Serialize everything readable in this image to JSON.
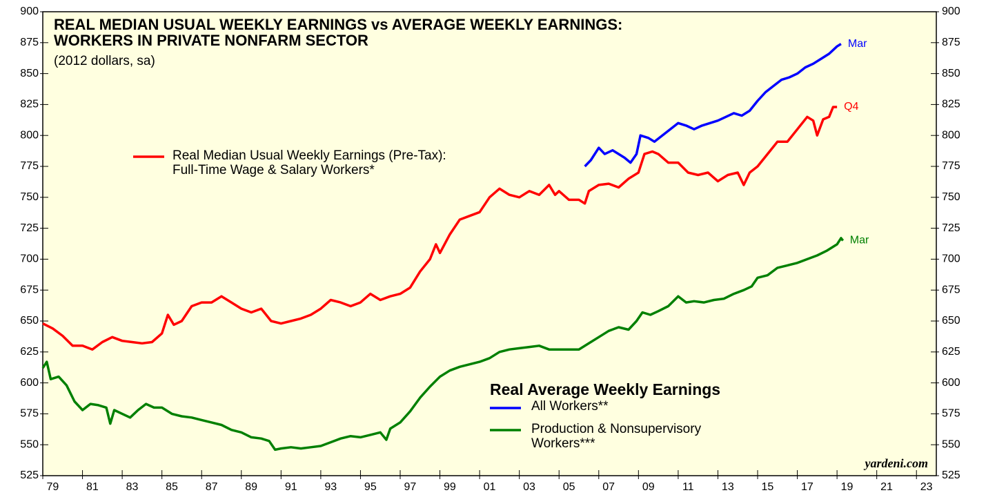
{
  "chart_data": {
    "type": "line",
    "title": "REAL MEDIAN USUAL WEEKLY EARNINGS vs AVERAGE WEEKLY EARNINGS:\nWORKERS IN PRIVATE NONFARM SECTOR",
    "subtitle": "(2012 dollars, sa)",
    "legend_title": "Real Average Weekly Earnings",
    "source": "yardeni.com",
    "xlim": [
      1979,
      2024
    ],
    "xticks": [
      {
        "value": 1979,
        "label": "79"
      },
      {
        "value": 1981,
        "label": "81"
      },
      {
        "value": 1983,
        "label": "83"
      },
      {
        "value": 1985,
        "label": "85"
      },
      {
        "value": 1987,
        "label": "87"
      },
      {
        "value": 1989,
        "label": "89"
      },
      {
        "value": 1991,
        "label": "91"
      },
      {
        "value": 1993,
        "label": "93"
      },
      {
        "value": 1995,
        "label": "95"
      },
      {
        "value": 1997,
        "label": "97"
      },
      {
        "value": 1999,
        "label": "99"
      },
      {
        "value": 2001,
        "label": "01"
      },
      {
        "value": 2003,
        "label": "03"
      },
      {
        "value": 2005,
        "label": "05"
      },
      {
        "value": 2007,
        "label": "07"
      },
      {
        "value": 2009,
        "label": "09"
      },
      {
        "value": 2011,
        "label": "11"
      },
      {
        "value": 2013,
        "label": "13"
      },
      {
        "value": 2015,
        "label": "15"
      },
      {
        "value": 2017,
        "label": "17"
      },
      {
        "value": 2019,
        "label": "19"
      },
      {
        "value": 2021,
        "label": "21"
      },
      {
        "value": 2023,
        "label": "23"
      }
    ],
    "ylim": [
      525,
      900
    ],
    "yticks": [
      525,
      550,
      575,
      600,
      625,
      650,
      675,
      700,
      725,
      750,
      775,
      800,
      825,
      850,
      875,
      900
    ],
    "series": [
      {
        "name": "Real Median Usual Weekly Earnings (Pre-Tax):\nFull-Time Wage & Salary Workers*",
        "color": "#ff0000",
        "end_label": "Q4",
        "x": [
          1979,
          1979.5,
          1980,
          1980.5,
          1981,
          1981.5,
          1982,
          1982.5,
          1983,
          1983.5,
          1984,
          1984.5,
          1985,
          1985.3,
          1985.6,
          1986,
          1986.5,
          1987,
          1987.5,
          1988,
          1988.5,
          1989,
          1989.5,
          1990,
          1990.5,
          1991,
          1991.5,
          1992,
          1992.5,
          1993,
          1993.5,
          1994,
          1994.5,
          1995,
          1995.5,
          1996,
          1996.5,
          1997,
          1997.5,
          1998,
          1998.5,
          1998.8,
          1999,
          1999.5,
          2000,
          2000.5,
          2001,
          2001.5,
          2002,
          2002.5,
          2003,
          2003.5,
          2004,
          2004.5,
          2004.8,
          2005,
          2005.5,
          2006,
          2006.3,
          2006.5,
          2007,
          2007.5,
          2008,
          2008.5,
          2009,
          2009.3,
          2009.7,
          2010,
          2010.5,
          2011,
          2011.5,
          2012,
          2012.5,
          2013,
          2013.5,
          2014,
          2014.3,
          2014.6,
          2015,
          2015.5,
          2016,
          2016.5,
          2017,
          2017.5,
          2017.8,
          2018,
          2018.3,
          2018.6,
          2018.8,
          2019
        ],
        "values": [
          648,
          644,
          638,
          630,
          630,
          627,
          633,
          637,
          634,
          633,
          632,
          633,
          640,
          655,
          647,
          650,
          662,
          665,
          665,
          670,
          665,
          660,
          657,
          660,
          650,
          648,
          650,
          652,
          655,
          660,
          667,
          665,
          662,
          665,
          672,
          667,
          670,
          672,
          677,
          690,
          700,
          712,
          705,
          720,
          732,
          735,
          738,
          750,
          757,
          752,
          750,
          755,
          752,
          760,
          752,
          755,
          748,
          748,
          745,
          755,
          760,
          761,
          758,
          765,
          770,
          785,
          787,
          785,
          778,
          778,
          770,
          768,
          770,
          763,
          768,
          770,
          760,
          770,
          775,
          785,
          795,
          795,
          805,
          815,
          812,
          800,
          813,
          815,
          823,
          823
        ]
      },
      {
        "name": "All Workers**",
        "color": "#0000ff",
        "end_label": "Mar",
        "x": [
          2006.3,
          2006.6,
          2007,
          2007.3,
          2007.7,
          2008,
          2008.3,
          2008.6,
          2008.9,
          2009.1,
          2009.5,
          2009.8,
          2010.2,
          2010.6,
          2011,
          2011.4,
          2011.8,
          2012.2,
          2012.6,
          2013,
          2013.4,
          2013.8,
          2014.2,
          2014.6,
          2015,
          2015.4,
          2015.8,
          2016.2,
          2016.6,
          2017,
          2017.4,
          2017.8,
          2018.2,
          2018.6,
          2019,
          2019.2
        ],
        "values": [
          775,
          780,
          790,
          785,
          788,
          785,
          782,
          778,
          785,
          800,
          798,
          795,
          800,
          805,
          810,
          808,
          805,
          808,
          810,
          812,
          815,
          818,
          816,
          820,
          828,
          835,
          840,
          845,
          847,
          850,
          855,
          858,
          862,
          866,
          872,
          874
        ]
      },
      {
        "name": "Production & Nonsupervisory\nWorkers***",
        "color": "#008000",
        "end_label": "Mar",
        "x": [
          1979,
          1979.2,
          1979.4,
          1979.8,
          1980.2,
          1980.6,
          1981,
          1981.4,
          1981.8,
          1982.2,
          1982.4,
          1982.6,
          1983,
          1983.4,
          1983.8,
          1984.2,
          1984.6,
          1985,
          1985.5,
          1986,
          1986.5,
          1987,
          1987.5,
          1988,
          1988.5,
          1989,
          1989.5,
          1990,
          1990.4,
          1990.7,
          1991,
          1991.5,
          1992,
          1992.5,
          1993,
          1993.5,
          1994,
          1994.5,
          1995,
          1995.5,
          1996,
          1996.3,
          1996.5,
          1997,
          1997.5,
          1998,
          1998.5,
          1999,
          1999.5,
          2000,
          2000.5,
          2001,
          2001.5,
          2002,
          2002.5,
          2003,
          2003.5,
          2004,
          2004.5,
          2005,
          2005.5,
          2006,
          2006.5,
          2007,
          2007.5,
          2008,
          2008.5,
          2008.9,
          2009.2,
          2009.6,
          2010,
          2010.5,
          2011,
          2011.4,
          2011.8,
          2012.3,
          2012.8,
          2013.3,
          2013.8,
          2014.3,
          2014.7,
          2015,
          2015.5,
          2016,
          2016.5,
          2017,
          2017.5,
          2018,
          2018.5,
          2019,
          2019.2,
          2019.3
        ],
        "values": [
          612,
          617,
          603,
          605,
          598,
          585,
          578,
          583,
          582,
          580,
          567,
          578,
          575,
          572,
          578,
          583,
          580,
          580,
          575,
          573,
          572,
          570,
          568,
          566,
          562,
          560,
          556,
          555,
          553,
          546,
          547,
          548,
          547,
          548,
          549,
          552,
          555,
          557,
          556,
          558,
          560,
          554,
          563,
          568,
          577,
          588,
          597,
          605,
          610,
          613,
          615,
          617,
          620,
          625,
          627,
          628,
          629,
          630,
          627,
          627,
          627,
          627,
          632,
          637,
          642,
          645,
          643,
          650,
          657,
          655,
          658,
          662,
          670,
          665,
          666,
          665,
          667,
          668,
          672,
          675,
          678,
          685,
          687,
          693,
          695,
          697,
          700,
          703,
          707,
          712,
          717,
          715
        ]
      }
    ]
  }
}
